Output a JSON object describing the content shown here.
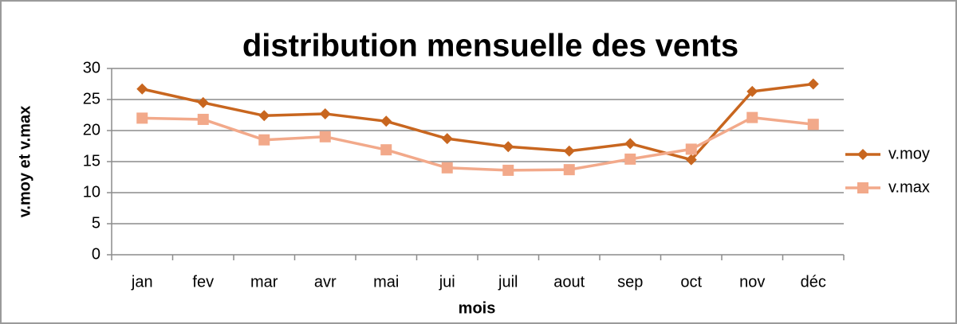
{
  "chart_data": {
    "type": "line",
    "title": "distribution mensuelle des vents",
    "x_label": "mois",
    "y_label": "v.moy et v.max",
    "categories": [
      "jan",
      "fev",
      "mar",
      "avr",
      "mai",
      "jui",
      "juil",
      "aout",
      "sep",
      "oct",
      "nov",
      "déc"
    ],
    "series": [
      {
        "name": "v.moy",
        "color": "#c8661f",
        "marker": "diamond",
        "values": [
          26.7,
          24.5,
          22.4,
          22.7,
          21.5,
          18.7,
          17.4,
          16.7,
          17.9,
          15.3,
          26.3,
          27.5
        ]
      },
      {
        "name": "v.max",
        "color": "#f2a98a",
        "marker": "square",
        "values": [
          22,
          21.8,
          18.5,
          19,
          16.9,
          14,
          13.6,
          13.7,
          15.4,
          17,
          22.1,
          21
        ]
      }
    ],
    "ylim": [
      0,
      30
    ],
    "yticks": [
      0,
      5,
      10,
      15,
      20,
      25,
      30
    ],
    "grid": true,
    "legend": "right"
  }
}
